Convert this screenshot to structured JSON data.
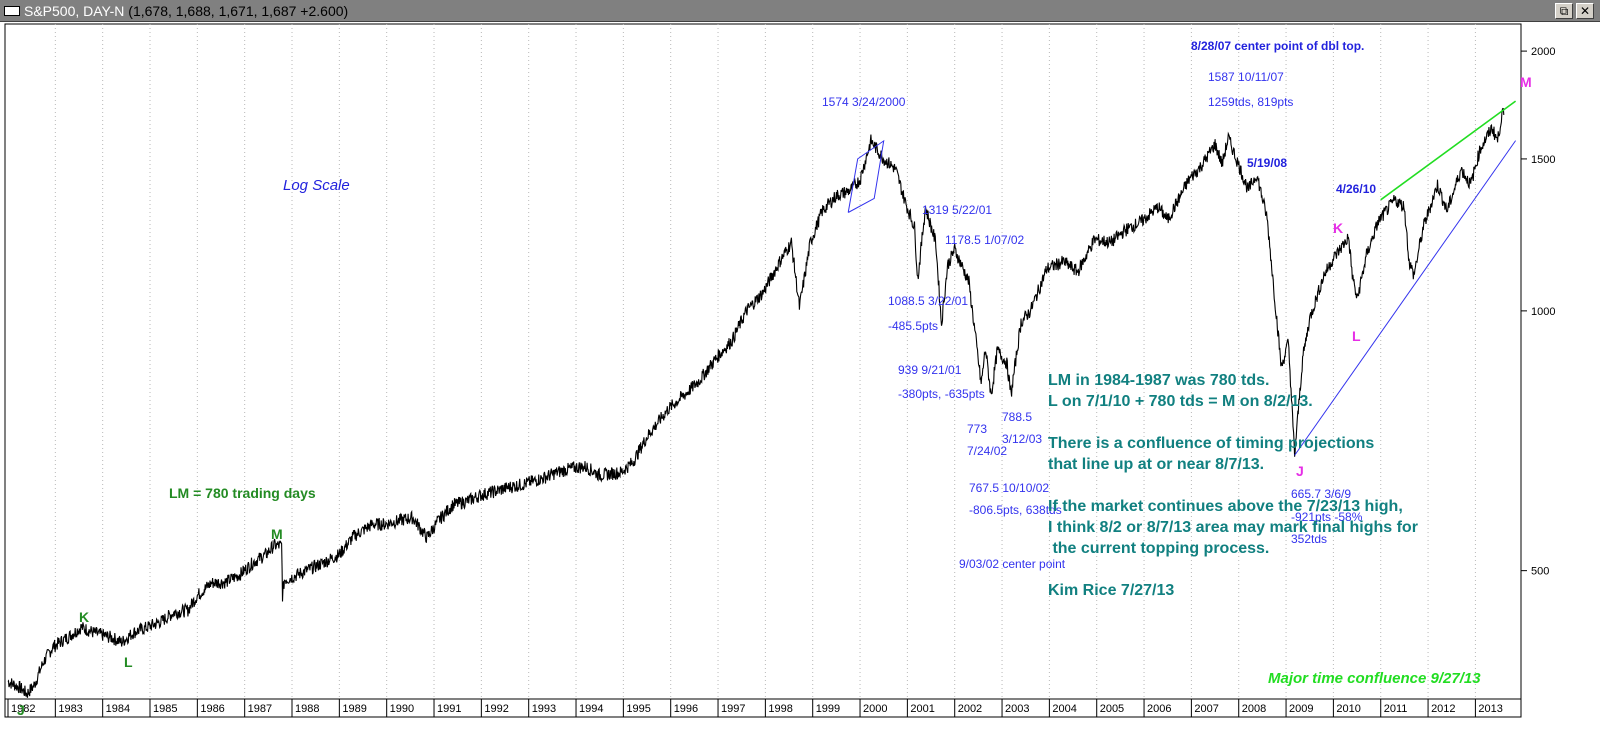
{
  "window": {
    "title": "S&P500, DAY-N",
    "values": "(1,678, 1,688, 1,671, 1,687 +2.600)",
    "restore_icon": "restore-icon",
    "close_icon": "close-icon"
  },
  "chart_data": {
    "type": "line",
    "title": "S&P500, DAY-N",
    "y_scale": "log",
    "ylim": [
      355,
      2150
    ],
    "x_range": [
      1982.0,
      2013.9
    ],
    "y_ticks": [
      "2000",
      "1500",
      "1000",
      "500"
    ],
    "x_ticks": [
      "1982",
      "1983",
      "1984",
      "1985",
      "1986",
      "1987",
      "1988",
      "1989",
      "1990",
      "1991",
      "1992",
      "1993",
      "1994",
      "1995",
      "1996",
      "1997",
      "1998",
      "1999",
      "2000",
      "2001",
      "2002",
      "2003",
      "2004",
      "2005",
      "2006",
      "2007",
      "2008",
      "2009",
      "2010",
      "2011",
      "2012",
      "2013"
    ],
    "grid": "vertical dotted at year boundaries",
    "series": [
      {
        "color": "#000000",
        "points": [
          [
            1982.0,
            372
          ],
          [
            1982.25,
            366
          ],
          [
            1982.4,
            360
          ],
          [
            1982.55,
            368
          ],
          [
            1982.75,
            392
          ],
          [
            1982.95,
            408
          ],
          [
            1983.3,
            420
          ],
          [
            1983.55,
            430
          ],
          [
            1983.8,
            424
          ],
          [
            1984.2,
            418
          ],
          [
            1984.4,
            413
          ],
          [
            1984.65,
            424
          ],
          [
            1984.95,
            430
          ],
          [
            1985.25,
            437
          ],
          [
            1985.5,
            447
          ],
          [
            1985.8,
            450
          ],
          [
            1986.0,
            468
          ],
          [
            1986.3,
            484
          ],
          [
            1986.6,
            485
          ],
          [
            1986.9,
            495
          ],
          [
            1987.2,
            512
          ],
          [
            1987.45,
            522
          ],
          [
            1987.62,
            535
          ],
          [
            1987.78,
            534
          ],
          [
            1987.8,
            468
          ],
          [
            1987.84,
            488
          ],
          [
            1987.95,
            490
          ],
          [
            1988.3,
            500
          ],
          [
            1988.7,
            512
          ],
          [
            1989.0,
            522
          ],
          [
            1989.3,
            548
          ],
          [
            1989.7,
            566
          ],
          [
            1989.95,
            566
          ],
          [
            1990.3,
            572
          ],
          [
            1990.55,
            576
          ],
          [
            1990.85,
            546
          ],
          [
            1991.1,
            572
          ],
          [
            1991.4,
            596
          ],
          [
            1991.7,
            602
          ],
          [
            1992.0,
            612
          ],
          [
            1992.3,
            618
          ],
          [
            1992.6,
            625
          ],
          [
            1992.9,
            630
          ],
          [
            1993.3,
            640
          ],
          [
            1993.6,
            650
          ],
          [
            1993.95,
            658
          ],
          [
            1994.2,
            660
          ],
          [
            1994.5,
            645
          ],
          [
            1994.95,
            650
          ],
          [
            1995.2,
            668
          ],
          [
            1995.5,
            715
          ],
          [
            1995.95,
            770
          ],
          [
            1996.3,
            800
          ],
          [
            1996.6,
            830
          ],
          [
            1996.95,
            880
          ],
          [
            1997.3,
            925
          ],
          [
            1997.6,
            1000
          ],
          [
            1997.95,
            1050
          ],
          [
            1998.3,
            1140
          ],
          [
            1998.55,
            1200
          ],
          [
            1998.72,
            1010
          ],
          [
            1998.95,
            1200
          ],
          [
            1999.2,
            1305
          ],
          [
            1999.5,
            1360
          ],
          [
            1999.8,
            1380
          ],
          [
            2000.0,
            1420
          ],
          [
            2000.23,
            1574
          ],
          [
            2000.5,
            1500
          ],
          [
            2000.75,
            1460
          ],
          [
            2000.95,
            1340
          ],
          [
            2001.15,
            1250
          ],
          [
            2001.22,
            1088
          ],
          [
            2001.38,
            1319
          ],
          [
            2001.6,
            1200
          ],
          [
            2001.72,
            965
          ],
          [
            2001.85,
            1130
          ],
          [
            2002.0,
            1178
          ],
          [
            2002.3,
            1080
          ],
          [
            2002.56,
            822
          ],
          [
            2002.65,
            905
          ],
          [
            2002.77,
            797
          ],
          [
            2002.9,
            900
          ],
          [
            2003.1,
            870
          ],
          [
            2003.19,
            800
          ],
          [
            2003.4,
            970
          ],
          [
            2003.6,
            1000
          ],
          [
            2003.95,
            1120
          ],
          [
            2004.3,
            1140
          ],
          [
            2004.6,
            1110
          ],
          [
            2004.95,
            1210
          ],
          [
            2005.3,
            1200
          ],
          [
            2005.6,
            1240
          ],
          [
            2005.95,
            1270
          ],
          [
            2006.3,
            1320
          ],
          [
            2006.5,
            1275
          ],
          [
            2006.95,
            1420
          ],
          [
            2007.2,
            1470
          ],
          [
            2007.5,
            1560
          ],
          [
            2007.65,
            1480
          ],
          [
            2007.78,
            1587
          ],
          [
            2007.95,
            1500
          ],
          [
            2008.2,
            1380
          ],
          [
            2008.38,
            1440
          ],
          [
            2008.6,
            1280
          ],
          [
            2008.75,
            1050
          ],
          [
            2008.9,
            860
          ],
          [
            2009.05,
            920
          ],
          [
            2009.18,
            680
          ],
          [
            2009.35,
            880
          ],
          [
            2009.5,
            980
          ],
          [
            2009.8,
            1100
          ],
          [
            2010.0,
            1150
          ],
          [
            2010.32,
            1217
          ],
          [
            2010.4,
            1100
          ],
          [
            2010.5,
            1030
          ],
          [
            2010.7,
            1160
          ],
          [
            2010.95,
            1270
          ],
          [
            2011.3,
            1345
          ],
          [
            2011.5,
            1320
          ],
          [
            2011.6,
            1140
          ],
          [
            2011.7,
            1100
          ],
          [
            2011.9,
            1250
          ],
          [
            2012.2,
            1400
          ],
          [
            2012.4,
            1305
          ],
          [
            2012.7,
            1460
          ],
          [
            2012.9,
            1400
          ],
          [
            2013.1,
            1540
          ],
          [
            2013.35,
            1630
          ],
          [
            2013.47,
            1575
          ],
          [
            2013.56,
            1690
          ],
          [
            2013.6,
            1687
          ]
        ]
      },
      {
        "color": "#3333ee",
        "role": "2000 top box",
        "points": [
          [
            1999.75,
            1300
          ],
          [
            1999.95,
            1500
          ],
          [
            2000.5,
            1574
          ],
          [
            2000.3,
            1350
          ],
          [
            1999.75,
            1300
          ]
        ]
      },
      {
        "color": "#3333ee",
        "role": "lower trend line",
        "points": [
          [
            2009.18,
            680
          ],
          [
            2013.85,
            1575
          ]
        ]
      },
      {
        "color": "#22dd22",
        "role": "upper trend line",
        "points": [
          [
            2011.0,
            1345
          ],
          [
            2013.85,
            1750
          ]
        ]
      }
    ],
    "annotations": [
      {
        "id": "logscale",
        "text": "Log Scale",
        "x": 1987.8,
        "y": 1400,
        "style": "logscale"
      },
      {
        "id": "a1574",
        "text": "1574   3/24/2000",
        "x": 1999.2,
        "y": 1740,
        "style": "blue"
      },
      {
        "id": "a1319",
        "text": "1319  5/22/01",
        "x": 2001.3,
        "y": 1305,
        "style": "blue"
      },
      {
        "id": "a1178",
        "text": "1178.5  1/07/02",
        "x": 2001.8,
        "y": 1205,
        "style": "blue"
      },
      {
        "id": "a1088",
        "text": "1088.5  3/22/01",
        "x": 2000.6,
        "y": 1025,
        "style": "blue"
      },
      {
        "id": "a485",
        "text": "-485.5pts",
        "x": 2000.6,
        "y": 958,
        "style": "blue"
      },
      {
        "id": "a939",
        "text": "939   9/21/01",
        "x": 2000.8,
        "y": 852,
        "style": "blue"
      },
      {
        "id": "a380",
        "text": "-380pts,  -635pts",
        "x": 2000.8,
        "y": 798,
        "style": "blue"
      },
      {
        "id": "a773",
        "text": "773",
        "x": 2002.25,
        "y": 728,
        "style": "blue"
      },
      {
        "id": "a72402",
        "text": "7/24/02",
        "x": 2002.25,
        "y": 686,
        "style": "blue"
      },
      {
        "id": "a788",
        "text": "788.5",
        "x": 2003.0,
        "y": 752,
        "style": "blue"
      },
      {
        "id": "a31203",
        "text": "3/12/03",
        "x": 2003.0,
        "y": 708,
        "style": "blue"
      },
      {
        "id": "a767",
        "text": "767.5  10/10/02",
        "x": 2002.3,
        "y": 622,
        "style": "blue"
      },
      {
        "id": "a806",
        "text": "-806.5pts,  638tds",
        "x": 2002.3,
        "y": 586,
        "style": "blue"
      },
      {
        "id": "a90302",
        "text": "9/03/02 center point",
        "x": 2002.1,
        "y": 508,
        "style": "blue"
      },
      {
        "id": "a82807",
        "text": "8/28/07 center point of dbl top.",
        "x": 2007.0,
        "y": 2020,
        "style": "blue-b"
      },
      {
        "id": "a1587",
        "text": "1587  10/11/07",
        "x": 2007.35,
        "y": 1860,
        "style": "blue"
      },
      {
        "id": "a1259",
        "text": "1259tds,  819pts",
        "x": 2007.35,
        "y": 1740,
        "style": "blue"
      },
      {
        "id": "a51908",
        "text": "5/19/08",
        "x": 2008.18,
        "y": 1480,
        "style": "blue-b"
      },
      {
        "id": "a42610",
        "text": "4/26/10",
        "x": 2010.05,
        "y": 1380,
        "style": "blue-b"
      },
      {
        "id": "a665",
        "text": "665.7   3/6/9",
        "x": 2009.1,
        "y": 612,
        "style": "blue"
      },
      {
        "id": "a921",
        "text": "-921pts  -58%",
        "x": 2009.1,
        "y": 576,
        "style": "blue"
      },
      {
        "id": "a352",
        "text": "352tds",
        "x": 2009.1,
        "y": 542,
        "style": "blue"
      },
      {
        "id": "lmJ1",
        "text": "J",
        "x": 1982.2,
        "y": 345,
        "style": "green-b"
      },
      {
        "id": "lmK1",
        "text": "K",
        "x": 1983.5,
        "y": 442,
        "style": "green-b"
      },
      {
        "id": "lmL1",
        "text": "L",
        "x": 1984.45,
        "y": 392,
        "style": "green-b"
      },
      {
        "id": "lmM1",
        "text": "M",
        "x": 1987.55,
        "y": 552,
        "style": "green-b"
      },
      {
        "id": "lm780",
        "text": "LM = 780 trading days",
        "x": 1985.4,
        "y": 615,
        "style": "green-b"
      },
      {
        "id": "lmJ2",
        "text": "J",
        "x": 2009.2,
        "y": 652,
        "style": "mag"
      },
      {
        "id": "lmK2",
        "text": "K",
        "x": 2010.0,
        "y": 1248,
        "style": "mag"
      },
      {
        "id": "lmL2",
        "text": "L",
        "x": 2010.4,
        "y": 935,
        "style": "mag"
      },
      {
        "id": "lmM2",
        "text": "M",
        "x": 2013.95,
        "y": 1842,
        "style": "mag"
      }
    ],
    "notes": [
      "LM in 1984-1987 was 780 tds.",
      "L on 7/1/10 + 780 tds = M on 8/2/13.",
      "",
      "There is a confluence of timing projections",
      "that line up at or near 8/7/13.",
      "",
      "If the market continues above the 7/23/13 high,",
      "I think 8/2 or 8/7/13 area may mark final highs for",
      " the current topping process.",
      "",
      "Kim Rice 7/27/13"
    ],
    "footer_note": "Major time confluence 9/27/13"
  }
}
